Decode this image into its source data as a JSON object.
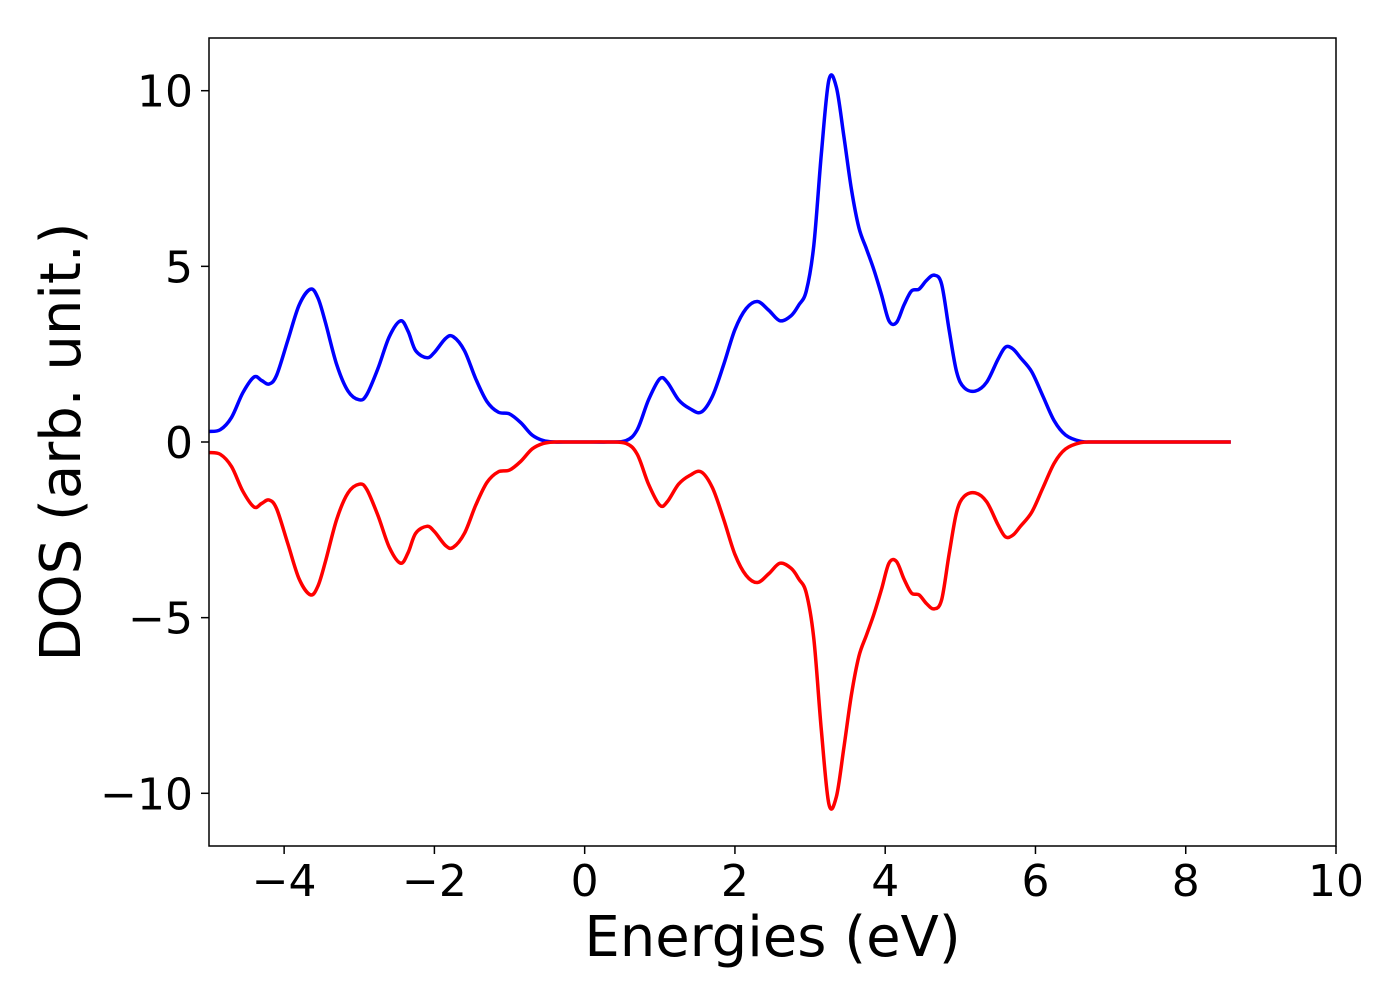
{
  "chart_data": {
    "type": "line",
    "title": "",
    "xlabel": "Energies (eV)",
    "ylabel": "DOS (arb. unit.)",
    "xlim": [
      -5,
      10
    ],
    "ylim": [
      -11.5,
      11.5
    ],
    "xticks": [
      -4,
      -2,
      0,
      2,
      4,
      6,
      8,
      10
    ],
    "xtick_labels": [
      "−4",
      "−2",
      "0",
      "2",
      "4",
      "6",
      "8",
      "10"
    ],
    "yticks": [
      10,
      5,
      0,
      -5,
      -10
    ],
    "ytick_labels": [
      "10",
      "5",
      "0",
      "−5",
      "−10"
    ],
    "grid": false,
    "legend": "none",
    "series": [
      {
        "color": "#0000ff",
        "x": [
          -5.0,
          -4.85,
          -4.7,
          -4.55,
          -4.4,
          -4.3,
          -4.2,
          -4.1,
          -3.95,
          -3.8,
          -3.65,
          -3.55,
          -3.45,
          -3.3,
          -3.15,
          -3.0,
          -2.9,
          -2.75,
          -2.6,
          -2.45,
          -2.35,
          -2.25,
          -2.1,
          -2.0,
          -1.85,
          -1.75,
          -1.6,
          -1.45,
          -1.3,
          -1.15,
          -1.0,
          -0.85,
          -0.7,
          -0.55,
          -0.4,
          -0.2,
          0.0,
          0.3,
          0.55,
          0.7,
          0.85,
          1.0,
          1.1,
          1.25,
          1.4,
          1.55,
          1.7,
          1.85,
          2.0,
          2.15,
          2.3,
          2.45,
          2.6,
          2.75,
          2.85,
          2.95,
          3.05,
          3.15,
          3.25,
          3.35,
          3.45,
          3.55,
          3.65,
          3.75,
          3.85,
          3.95,
          4.05,
          4.15,
          4.25,
          4.35,
          4.45,
          4.55,
          4.65,
          4.75,
          4.85,
          4.95,
          5.05,
          5.2,
          5.35,
          5.5,
          5.6,
          5.7,
          5.8,
          5.95,
          6.1,
          6.25,
          6.4,
          6.6,
          6.8,
          7.2,
          7.6,
          8.0,
          8.6
        ],
        "y": [
          0.3,
          0.35,
          0.7,
          1.4,
          1.85,
          1.75,
          1.65,
          1.9,
          2.9,
          3.9,
          4.35,
          4.1,
          3.4,
          2.2,
          1.45,
          1.2,
          1.35,
          2.1,
          3.0,
          3.45,
          3.15,
          2.6,
          2.4,
          2.55,
          2.95,
          3.0,
          2.6,
          1.8,
          1.15,
          0.85,
          0.8,
          0.55,
          0.2,
          0.04,
          0.0,
          0.0,
          0.0,
          0.0,
          0.04,
          0.35,
          1.2,
          1.8,
          1.7,
          1.2,
          0.95,
          0.85,
          1.3,
          2.2,
          3.2,
          3.8,
          4.0,
          3.75,
          3.45,
          3.6,
          3.9,
          4.3,
          5.6,
          8.2,
          10.3,
          10.1,
          8.7,
          7.2,
          6.1,
          5.5,
          4.9,
          4.2,
          3.45,
          3.4,
          3.9,
          4.3,
          4.35,
          4.6,
          4.75,
          4.5,
          3.2,
          2.0,
          1.55,
          1.45,
          1.7,
          2.35,
          2.7,
          2.65,
          2.4,
          2.0,
          1.3,
          0.6,
          0.2,
          0.02,
          0.0,
          0.0,
          0.0,
          0.0,
          0.0
        ]
      },
      {
        "color": "#ff0000",
        "x": [
          -5.0,
          -4.85,
          -4.7,
          -4.55,
          -4.4,
          -4.3,
          -4.2,
          -4.1,
          -3.95,
          -3.8,
          -3.65,
          -3.55,
          -3.45,
          -3.3,
          -3.15,
          -3.0,
          -2.9,
          -2.75,
          -2.6,
          -2.45,
          -2.35,
          -2.25,
          -2.1,
          -2.0,
          -1.85,
          -1.75,
          -1.6,
          -1.45,
          -1.3,
          -1.15,
          -1.0,
          -0.85,
          -0.7,
          -0.55,
          -0.4,
          -0.2,
          0.0,
          0.3,
          0.55,
          0.7,
          0.85,
          1.0,
          1.1,
          1.25,
          1.4,
          1.55,
          1.7,
          1.85,
          2.0,
          2.15,
          2.3,
          2.45,
          2.6,
          2.75,
          2.85,
          2.95,
          3.05,
          3.15,
          3.25,
          3.35,
          3.45,
          3.55,
          3.65,
          3.75,
          3.85,
          3.95,
          4.05,
          4.15,
          4.25,
          4.35,
          4.45,
          4.55,
          4.65,
          4.75,
          4.85,
          4.95,
          5.05,
          5.2,
          5.35,
          5.5,
          5.6,
          5.7,
          5.8,
          5.95,
          6.1,
          6.25,
          6.4,
          6.6,
          6.8,
          7.2,
          7.6,
          8.0,
          8.6
        ],
        "y": [
          -0.3,
          -0.35,
          -0.7,
          -1.4,
          -1.85,
          -1.75,
          -1.65,
          -1.9,
          -2.9,
          -3.9,
          -4.35,
          -4.1,
          -3.4,
          -2.2,
          -1.45,
          -1.2,
          -1.35,
          -2.1,
          -3.0,
          -3.45,
          -3.15,
          -2.6,
          -2.4,
          -2.55,
          -2.95,
          -3.0,
          -2.6,
          -1.8,
          -1.15,
          -0.85,
          -0.8,
          -0.55,
          -0.2,
          -0.04,
          0.0,
          0.0,
          0.0,
          0.0,
          -0.04,
          -0.35,
          -1.2,
          -1.8,
          -1.7,
          -1.2,
          -0.95,
          -0.85,
          -1.3,
          -2.2,
          -3.2,
          -3.8,
          -4.0,
          -3.75,
          -3.45,
          -3.6,
          -3.9,
          -4.3,
          -5.6,
          -8.2,
          -10.3,
          -10.1,
          -8.7,
          -7.2,
          -6.1,
          -5.5,
          -4.9,
          -4.2,
          -3.45,
          -3.4,
          -3.9,
          -4.3,
          -4.35,
          -4.6,
          -4.75,
          -4.5,
          -3.2,
          -2.0,
          -1.55,
          -1.45,
          -1.7,
          -2.35,
          -2.7,
          -2.65,
          -2.4,
          -2.0,
          -1.3,
          -0.6,
          -0.2,
          -0.02,
          0.0,
          0.0,
          0.0,
          0.0,
          0.0
        ]
      }
    ]
  }
}
